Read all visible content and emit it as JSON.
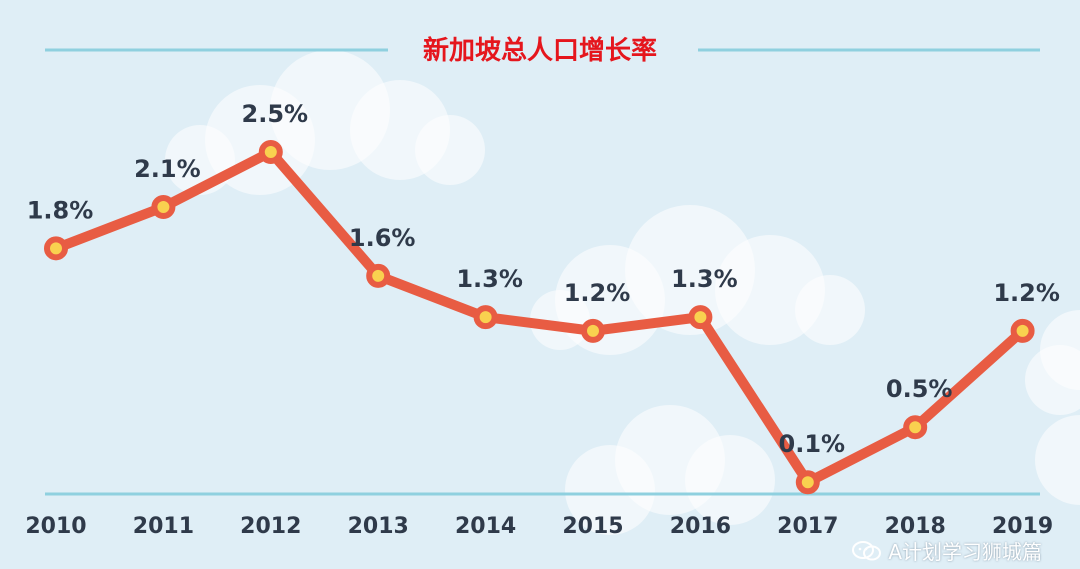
{
  "colors": {
    "background": "#dfeef6",
    "cloud": "#ffffff",
    "rule": "#8fd0df",
    "line": "#e85c43",
    "marker_fill": "#f9d14f",
    "title": "#e5161d",
    "text": "#2f3a4a"
  },
  "watermark": {
    "icon": "wechat-icon",
    "text": "A计划学习狮城篇"
  },
  "chart_data": {
    "type": "line",
    "title": "新加坡总人口增长率",
    "xlabel": "",
    "ylabel": "",
    "categories": [
      "2010",
      "2011",
      "2012",
      "2013",
      "2014",
      "2015",
      "2016",
      "2017",
      "2018",
      "2019"
    ],
    "values": [
      1.8,
      2.1,
      2.5,
      1.6,
      1.3,
      1.2,
      1.3,
      0.1,
      0.5,
      1.2
    ],
    "data_labels": [
      "1.8%",
      "2.1%",
      "2.5%",
      "1.6%",
      "1.3%",
      "1.2%",
      "1.3%",
      "0.1%",
      "0.5%",
      "1.2%"
    ],
    "unit": "%",
    "y_axis_visible": false,
    "grid": false,
    "legend": "none"
  }
}
